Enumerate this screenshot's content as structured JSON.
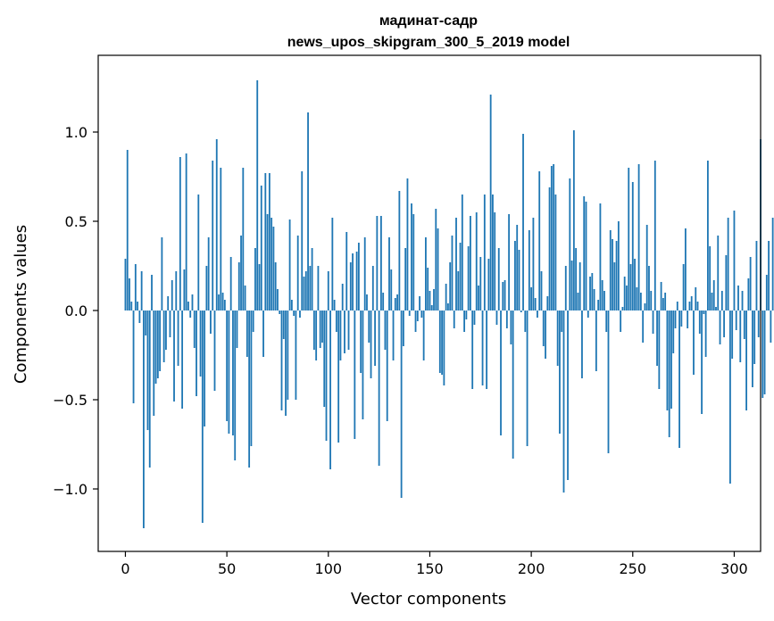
{
  "chart_data": {
    "type": "bar",
    "title": "мадинат-садр",
    "subtitle": "news_upos_skipgram_300_5_2019 model",
    "xlabel": "Vector components",
    "ylabel": "Components values",
    "xlim": [
      -13.4,
      313
    ],
    "ylim": [
      -1.35,
      1.43
    ],
    "xticks": [
      0,
      50,
      100,
      150,
      200,
      250,
      300
    ],
    "xtick_labels": [
      "0",
      "50",
      "100",
      "150",
      "200",
      "250",
      "300"
    ],
    "yticks": [
      -1.0,
      -0.5,
      0.0,
      0.5,
      1.0
    ],
    "ytick_labels": [
      "−1.0",
      "−0.5",
      "0.0",
      "0.5",
      "1.0"
    ],
    "bar_color": "#1f77b4",
    "grid": false,
    "series": [
      {
        "name": "components",
        "values": [
          0.29,
          0.9,
          0.18,
          0.05,
          -0.52,
          0.26,
          0.05,
          -0.07,
          0.22,
          -1.22,
          -0.14,
          -0.67,
          -0.88,
          0.2,
          -0.59,
          -0.41,
          -0.38,
          -0.34,
          0.41,
          -0.29,
          -0.22,
          0.08,
          -0.15,
          0.17,
          -0.51,
          0.22,
          -0.31,
          0.86,
          -0.55,
          0.23,
          0.88,
          0.05,
          -0.04,
          0.09,
          -0.21,
          -0.48,
          0.65,
          -0.37,
          -1.19,
          -0.65,
          0.25,
          0.41,
          -0.13,
          0.84,
          -0.45,
          0.96,
          0.09,
          0.8,
          0.1,
          0.06,
          -0.62,
          -0.69,
          0.3,
          -0.7,
          -0.84,
          -0.21,
          0.27,
          0.42,
          0.8,
          0.14,
          -0.26,
          -0.88,
          -0.76,
          -0.12,
          0.35,
          1.29,
          0.26,
          0.7,
          -0.26,
          0.77,
          0.54,
          0.77,
          0.52,
          0.47,
          0.27,
          0.12,
          -0.02,
          -0.56,
          -0.16,
          -0.59,
          -0.5,
          0.51,
          0.06,
          -0.03,
          -0.5,
          0.42,
          -0.04,
          0.78,
          0.19,
          0.22,
          1.11,
          0.25,
          0.35,
          -0.22,
          -0.28,
          0.25,
          -0.21,
          -0.18,
          -0.54,
          -0.73,
          0.22,
          -0.89,
          0.52,
          0.06,
          -0.12,
          -0.74,
          -0.28,
          0.15,
          -0.24,
          0.44,
          -0.22,
          0.27,
          0.32,
          -0.72,
          0.33,
          0.38,
          -0.35,
          -0.61,
          0.41,
          0.09,
          -0.18,
          -0.38,
          0.25,
          -0.31,
          0.53,
          -0.87,
          0.53,
          0.1,
          -0.22,
          -0.62,
          0.41,
          0.23,
          -0.28,
          0.07,
          0.09,
          0.67,
          -1.05,
          -0.2,
          0.35,
          0.74,
          -0.03,
          0.6,
          0.54,
          -0.12,
          -0.06,
          0.08,
          -0.04,
          -0.28,
          0.41,
          0.24,
          0.11,
          0.03,
          0.12,
          0.57,
          0.46,
          -0.35,
          -0.36,
          -0.42,
          0.15,
          0.04,
          0.27,
          0.42,
          -0.1,
          0.52,
          0.22,
          0.38,
          0.65,
          -0.12,
          -0.05,
          0.36,
          0.53,
          -0.44,
          -0.08,
          0.55,
          0.14,
          0.3,
          -0.42,
          0.65,
          -0.44,
          0.29,
          1.21,
          0.65,
          0.55,
          -0.08,
          0.35,
          -0.7,
          0.16,
          0.17,
          -0.1,
          0.54,
          -0.19,
          -0.83,
          0.39,
          0.48,
          0.34,
          -0.01,
          0.99,
          -0.12,
          -0.76,
          0.45,
          0.13,
          0.52,
          0.07,
          -0.04,
          0.78,
          0.22,
          -0.2,
          -0.27,
          0.08,
          0.69,
          0.81,
          0.82,
          0.65,
          -0.31,
          -0.69,
          -0.12,
          -1.02,
          0.25,
          -0.95,
          0.74,
          0.28,
          1.01,
          0.35,
          0.1,
          0.27,
          -0.38,
          0.64,
          0.61,
          -0.04,
          0.19,
          0.21,
          0.12,
          -0.34,
          0.06,
          0.6,
          0.17,
          0.11,
          -0.12,
          -0.8,
          0.45,
          0.4,
          0.27,
          0.39,
          0.5,
          -0.12,
          0.02,
          0.19,
          0.14,
          0.8,
          0.26,
          0.72,
          0.29,
          0.13,
          0.82,
          0.1,
          -0.18,
          0.04,
          0.48,
          0.25,
          0.11,
          -0.13,
          0.84,
          -0.31,
          -0.44,
          0.16,
          0.07,
          0.1,
          -0.56,
          -0.71,
          -0.55,
          -0.24,
          -0.1,
          0.05,
          -0.77,
          -0.09,
          0.26,
          0.46,
          -0.1,
          0.05,
          0.08,
          -0.36,
          0.13,
          0.05,
          -0.13,
          -0.58,
          -0.02,
          -0.26,
          0.84,
          0.36,
          0.1,
          0.17,
          0.02,
          0.42,
          -0.19,
          0.11,
          -0.15,
          0.31,
          0.52,
          -0.97,
          -0.27,
          0.56,
          -0.11,
          0.14,
          -0.29,
          0.11,
          -0.16,
          -0.56,
          0.18,
          0.3,
          -0.43,
          -0.3,
          0.39,
          -0.15,
          0.96,
          -0.49,
          -0.47,
          0.2,
          0.39,
          -0.18,
          0.52
        ]
      }
    ]
  }
}
